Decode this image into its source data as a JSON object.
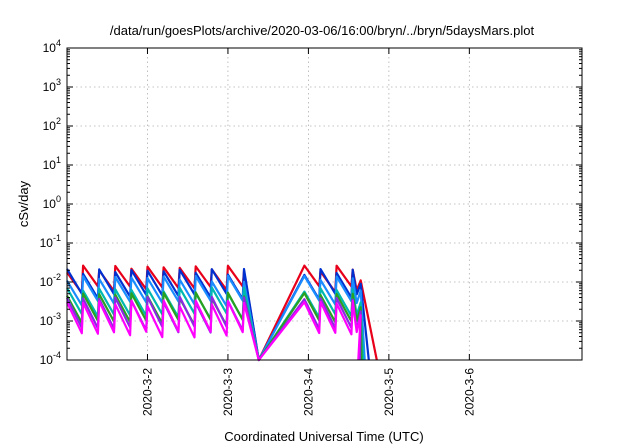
{
  "chart_data": {
    "type": "line",
    "title": "/data/run/goesPlots/archive/2020-03-06/16:00/bryn/../bryn/5daysMars.plot",
    "xlabel": "Coordinated Universal Time (UTC)",
    "ylabel": "cSv/day",
    "yscale": "log",
    "ylim": [
      0.0001,
      10000
    ],
    "xlim": [
      0,
      6.4
    ],
    "grid": true,
    "x_ticks": [
      {
        "x": 1,
        "label": "2020-3-2"
      },
      {
        "x": 2,
        "label": "2020-3-3"
      },
      {
        "x": 3,
        "label": "2020-3-4"
      },
      {
        "x": 4,
        "label": "2020-3-5"
      },
      {
        "x": 5,
        "label": "2020-3-6"
      }
    ],
    "y_ticks": [
      {
        "value": 0.0001,
        "base": "10",
        "exp": "-4"
      },
      {
        "value": 0.001,
        "base": "10",
        "exp": "-3"
      },
      {
        "value": 0.01,
        "base": "10",
        "exp": "-2"
      },
      {
        "value": 0.1,
        "base": "10",
        "exp": "-1"
      },
      {
        "value": 1,
        "base": "10",
        "exp": "0"
      },
      {
        "value": 10,
        "base": "10",
        "exp": "1"
      },
      {
        "value": 100,
        "base": "10",
        "exp": "2"
      },
      {
        "value": 1000,
        "base": "10",
        "exp": "3"
      },
      {
        "value": 10000,
        "base": "10",
        "exp": "4"
      }
    ],
    "series_style": {
      "period": 0.2,
      "start_x": 0,
      "active_end_x": 3.6,
      "gap_start_x": 2.25,
      "gap_end_x": 2.95
    },
    "series": [
      {
        "color": "#e8001a",
        "peak": 0.022,
        "trough": 0.0065,
        "decay_end_x": 3.85
      },
      {
        "color": "#0030d0",
        "peak": 0.018,
        "trough": 0.0042,
        "decay_end_x": 3.75
      },
      {
        "color": "#1a8cff",
        "peak": 0.012,
        "trough": 0.0028,
        "decay_end_x": 3.7
      },
      {
        "color": "#00b8b0",
        "peak": 0.006,
        "trough": 0.0013,
        "decay_end_x": 3.68
      },
      {
        "color": "#2aa020",
        "peak": 0.0045,
        "trough": 0.0009,
        "decay_end_x": 3.66
      },
      {
        "color": "#8a2be2",
        "peak": 0.0035,
        "trough": 0.0006,
        "decay_end_x": 3.64
      },
      {
        "color": "#ff00ff",
        "peak": 0.0028,
        "trough": 0.00045,
        "decay_end_x": 3.62
      }
    ]
  }
}
